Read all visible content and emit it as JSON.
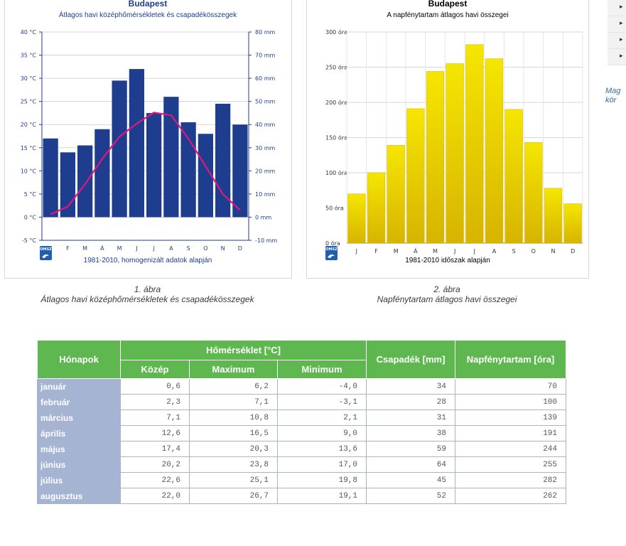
{
  "chart_data": [
    {
      "type": "bar+line",
      "title": "Budapest",
      "subtitle": "Átlagos havi középhőmérsékletek és csapadékösszegek",
      "categories": [
        "J",
        "F",
        "M",
        "Á",
        "M",
        "J",
        "J",
        "A",
        "S",
        "O",
        "N",
        "D"
      ],
      "series": [
        {
          "axis": "right",
          "type": "bar",
          "values": [
            34,
            28,
            31,
            38,
            59,
            64,
            45,
            52,
            41,
            36,
            49,
            40
          ]
        },
        {
          "axis": "left",
          "type": "line",
          "values": [
            0.6,
            2.3,
            7.1,
            12.6,
            17.4,
            20.2,
            22.6,
            22.0,
            17.0,
            11.0,
            5.0,
            1.5
          ]
        }
      ],
      "yleft": {
        "ticks": [
          "-5 °C",
          "0 °C",
          "5 °C",
          "10 °C",
          "15 °C",
          "20 °C",
          "25 °C",
          "30 °C",
          "35 °C",
          "40 °C"
        ],
        "range": [
          -5,
          40
        ]
      },
      "yright": {
        "ticks": [
          "-10 mm",
          "0 mm",
          "10 mm",
          "20 mm",
          "30 mm",
          "40 mm",
          "50 mm",
          "60 mm",
          "70 mm",
          "80 mm"
        ],
        "range": [
          -10,
          80
        ]
      },
      "colors": {
        "bar": "#1f3d8f",
        "line": "#e0187a"
      },
      "footer": "1981-2010, homogenizált adatok alapján",
      "logo_text": "OMSZ",
      "caption_number": "1. ábra",
      "caption_text": "Átlagos havi középhőmérsékletek és csapadékösszegek"
    },
    {
      "type": "bar",
      "title": "Budapest",
      "subtitle": "A napfénytartam átlagos havi összegei",
      "categories": [
        "J",
        "F",
        "M",
        "Á",
        "M",
        "J",
        "J",
        "A",
        "S",
        "O",
        "N",
        "D"
      ],
      "values": [
        70,
        100,
        139,
        191,
        244,
        255,
        282,
        262,
        190,
        143,
        78,
        56
      ],
      "yticks": [
        "0 óra",
        "50 óra",
        "100 óra",
        "150 óra",
        "200 óra",
        "250 óra",
        "300 óra"
      ],
      "ylim": [
        0,
        300
      ],
      "colors": {
        "bar_top": "#f5e600",
        "bar_bottom": "#d7b400"
      },
      "footer": "1981-2010 időszak alapján",
      "logo_text": "OMSZ",
      "caption_number": "2. ábra",
      "caption_text": "Napfénytartam átlagos havi összegei"
    }
  ],
  "sidebar": {
    "nav_items": [
      "▸",
      "▸",
      "▸",
      "▸"
    ],
    "caption_line1": "Mag",
    "caption_line2": "kör"
  },
  "table": {
    "headers": {
      "month": "Hónapok",
      "temp": "Hőmérséklet [°C]",
      "avg": "Közép",
      "max": "Maximum",
      "min": "Minimum",
      "precip": "Csapadék [mm]",
      "sun": "Napfénytartam [óra]"
    },
    "rows": [
      {
        "month": "január",
        "avg": "0,6",
        "max": "6,2",
        "min": "-4,0",
        "precip": "34",
        "sun": "70"
      },
      {
        "month": "február",
        "avg": "2,3",
        "max": "7,1",
        "min": "-3,1",
        "precip": "28",
        "sun": "100"
      },
      {
        "month": "március",
        "avg": "7,1",
        "max": "10,8",
        "min": "2,1",
        "precip": "31",
        "sun": "139"
      },
      {
        "month": "április",
        "avg": "12,6",
        "max": "16,5",
        "min": "9,0",
        "precip": "38",
        "sun": "191"
      },
      {
        "month": "május",
        "avg": "17,4",
        "max": "20,3",
        "min": "13,6",
        "precip": "59",
        "sun": "244"
      },
      {
        "month": "június",
        "avg": "20,2",
        "max": "23,8",
        "min": "17,0",
        "precip": "64",
        "sun": "255"
      },
      {
        "month": "július",
        "avg": "22,6",
        "max": "25,1",
        "min": "19,8",
        "precip": "45",
        "sun": "282"
      },
      {
        "month": "augusztus",
        "avg": "22,0",
        "max": "26,7",
        "min": "19,1",
        "precip": "52",
        "sun": "262"
      }
    ]
  }
}
